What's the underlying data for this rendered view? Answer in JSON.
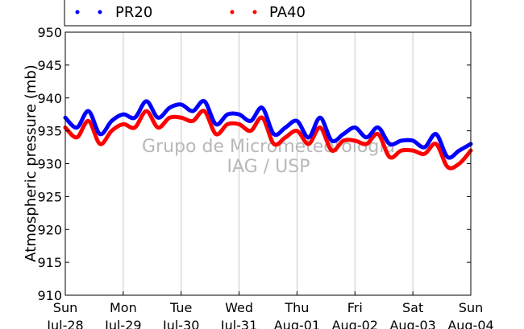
{
  "chart_data": {
    "type": "line",
    "ylabel": "Atmospheric pressure (mb)",
    "ylim": [
      910,
      950
    ],
    "yticks": [
      910,
      915,
      920,
      925,
      930,
      935,
      940,
      945,
      950
    ],
    "xlim": [
      0,
      7
    ],
    "xticks": [
      {
        "x": 0,
        "day": "Sun",
        "date": "Jul-28"
      },
      {
        "x": 1,
        "day": "Mon",
        "date": "Jul-29"
      },
      {
        "x": 2,
        "day": "Tue",
        "date": "Jul-30"
      },
      {
        "x": 3,
        "day": "Wed",
        "date": "Jul-31"
      },
      {
        "x": 4,
        "day": "Thu",
        "date": "Aug-01"
      },
      {
        "x": 5,
        "day": "Fri",
        "date": "Aug-02"
      },
      {
        "x": 6,
        "day": "Sat",
        "date": "Aug-03"
      },
      {
        "x": 7,
        "day": "Sun",
        "date": "Aug-04"
      }
    ],
    "grid": {
      "x": true,
      "y": false
    },
    "legend": {
      "placement": "top"
    },
    "watermark": [
      "Grupo de Micrometeorologia",
      "IAG / USP"
    ],
    "series": [
      {
        "name": "PR20",
        "color": "#0000ff",
        "x": [
          0.0,
          0.2,
          0.4,
          0.6,
          0.8,
          1.0,
          1.2,
          1.4,
          1.6,
          1.8,
          2.0,
          2.2,
          2.4,
          2.6,
          2.8,
          3.0,
          3.2,
          3.4,
          3.6,
          3.8,
          4.0,
          4.2,
          4.4,
          4.6,
          4.8,
          5.0,
          5.2,
          5.4,
          5.6,
          5.8,
          6.0,
          6.2,
          6.4,
          6.6,
          6.8,
          7.0
        ],
        "y": [
          937.0,
          935.5,
          938.0,
          934.5,
          936.5,
          937.5,
          937.0,
          939.5,
          937.0,
          938.5,
          939.0,
          938.0,
          939.5,
          936.0,
          937.5,
          937.5,
          936.5,
          938.5,
          934.5,
          935.5,
          936.5,
          934.0,
          937.0,
          933.5,
          934.5,
          935.5,
          934.0,
          935.5,
          933.0,
          933.5,
          933.5,
          932.5,
          934.5,
          931.0,
          932.0,
          933.0
        ]
      },
      {
        "name": "PA40",
        "color": "#ff0000",
        "x": [
          0.0,
          0.2,
          0.4,
          0.6,
          0.8,
          1.0,
          1.2,
          1.4,
          1.6,
          1.8,
          2.0,
          2.2,
          2.4,
          2.6,
          2.8,
          3.0,
          3.2,
          3.4,
          3.6,
          3.8,
          4.0,
          4.2,
          4.4,
          4.6,
          4.8,
          5.0,
          5.2,
          5.4,
          5.6,
          5.8,
          6.0,
          6.2,
          6.4,
          6.6,
          6.8,
          7.0
        ],
        "y": [
          935.5,
          934.0,
          936.5,
          933.0,
          935.0,
          936.0,
          935.5,
          938.0,
          935.5,
          937.0,
          937.0,
          936.5,
          938.0,
          934.5,
          936.0,
          936.0,
          935.0,
          937.0,
          933.0,
          934.0,
          935.0,
          933.0,
          935.5,
          932.0,
          933.5,
          933.5,
          933.0,
          934.5,
          931.0,
          932.0,
          932.0,
          931.5,
          933.0,
          929.5,
          930.0,
          932.0
        ]
      }
    ]
  }
}
